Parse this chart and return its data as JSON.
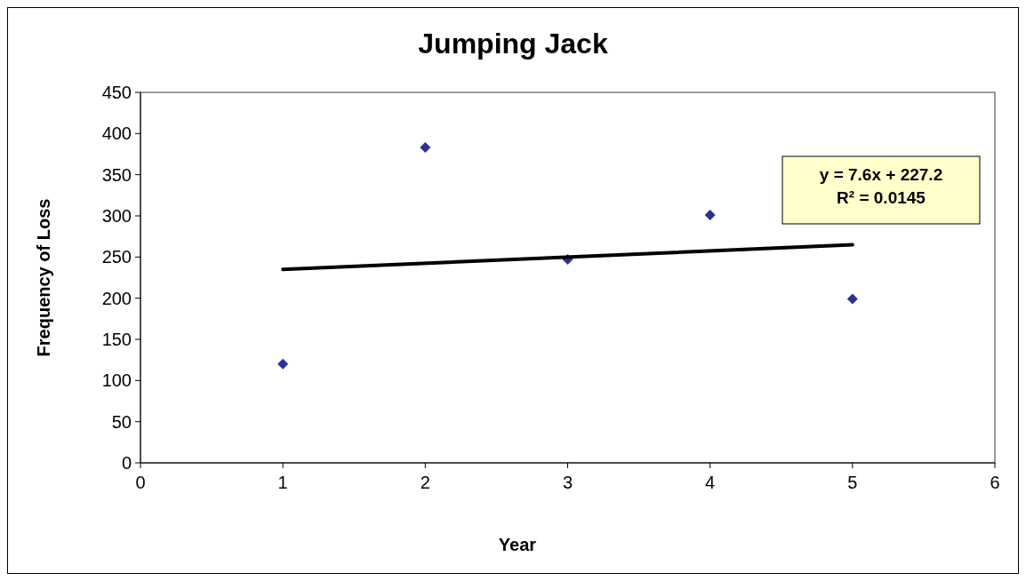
{
  "chart_data": {
    "type": "scatter",
    "title": "Jumping Jack",
    "xlabel": "Year",
    "ylabel": "Frequency of Loss",
    "xlim": [
      0,
      6
    ],
    "xticks": [
      0,
      1,
      2,
      3,
      4,
      5,
      6
    ],
    "ylim": [
      0,
      450
    ],
    "yticks": [
      0,
      50,
      100,
      150,
      200,
      250,
      300,
      350,
      400,
      450
    ],
    "grid": false,
    "marker": "diamond",
    "annotations": [
      "y = 7.6x + 227.2",
      "R² = 0.0145"
    ],
    "series": [
      {
        "color": "#2e3192",
        "x": [
          1,
          2,
          3,
          4,
          5
        ],
        "values": [
          120,
          383,
          247,
          301,
          199
        ]
      },
      {
        "type": "line",
        "color": "#000000",
        "marker": "none",
        "line_style": "solid",
        "x": [
          1,
          5
        ],
        "values": [
          235,
          265
        ]
      }
    ]
  }
}
